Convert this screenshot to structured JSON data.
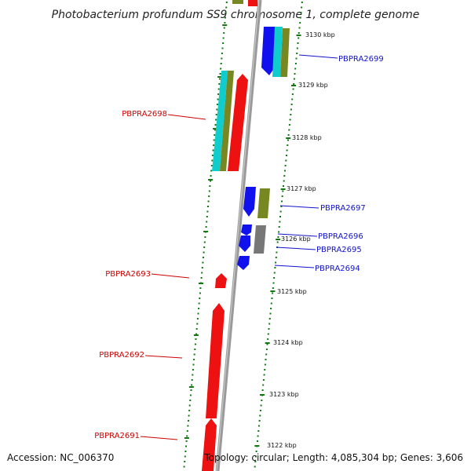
{
  "title": "Photobacterium profundum SS9 chromosome 1, complete genome",
  "footer": {
    "accession": "Accession: NC_006370",
    "topology": "Topology: circular; Length: 4,085,304 bp; Genes: 3,606"
  },
  "colors": {
    "forward": "#ee1111",
    "reverse": "#1111ee",
    "cyan": "#11cccc",
    "olive": "#778822",
    "gray": "#777777",
    "tick": "#117711",
    "backbone": "#888888"
  },
  "scale_labels": [
    "3130 kbp",
    "3129 kbp",
    "3128 kbp",
    "3127 kbp",
    "3126 kbp",
    "3125 kbp",
    "3124 kbp",
    "3123 kbp",
    "3122 kbp"
  ],
  "gene_labels": [
    {
      "id": "PBPRA2699",
      "text": "PBPRA2699",
      "strand": "reverse"
    },
    {
      "id": "PBPRA2698",
      "text": "PBPRA2698",
      "strand": "forward"
    },
    {
      "id": "PBPRA2697",
      "text": "PBPRA2697",
      "strand": "reverse"
    },
    {
      "id": "PBPRA2696",
      "text": "PBPRA2696",
      "strand": "reverse"
    },
    {
      "id": "PBPRA2695",
      "text": "PBPRA2695",
      "strand": "reverse"
    },
    {
      "id": "PBPRA2694",
      "text": "PBPRA2694",
      "strand": "reverse"
    },
    {
      "id": "PBPRA2693",
      "text": "PBPRA2693",
      "strand": "forward"
    },
    {
      "id": "PBPRA2692",
      "text": "PBPRA2692",
      "strand": "forward"
    },
    {
      "id": "PBPRA2691",
      "text": "PBPRA2691",
      "strand": "forward"
    }
  ]
}
